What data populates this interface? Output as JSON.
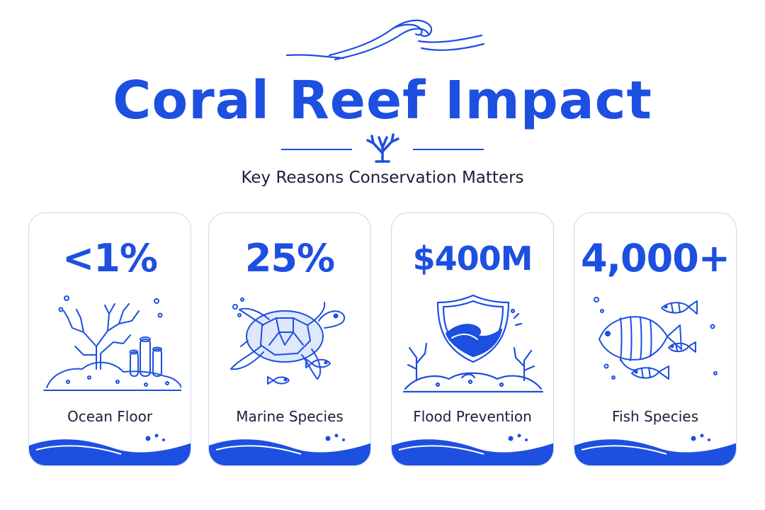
{
  "page": {
    "title": "Coral Reef Impact",
    "subtitle": "Key Reasons Conservation Matters"
  },
  "cards": [
    {
      "stat": "<1%",
      "label": "Ocean Floor",
      "icon": "coral-icon"
    },
    {
      "stat": "25%",
      "label": "Marine Species",
      "icon": "sea-turtle-icon"
    },
    {
      "stat": "$400M",
      "label": "Flood Prevention",
      "icon": "shield-wave-icon"
    },
    {
      "stat": "4,000+",
      "label": "Fish Species",
      "icon": "fish-icon"
    }
  ],
  "colors": {
    "accent": "#1d4fe0",
    "text": "#1b1f3a",
    "card_border": "#c9d6f1"
  }
}
